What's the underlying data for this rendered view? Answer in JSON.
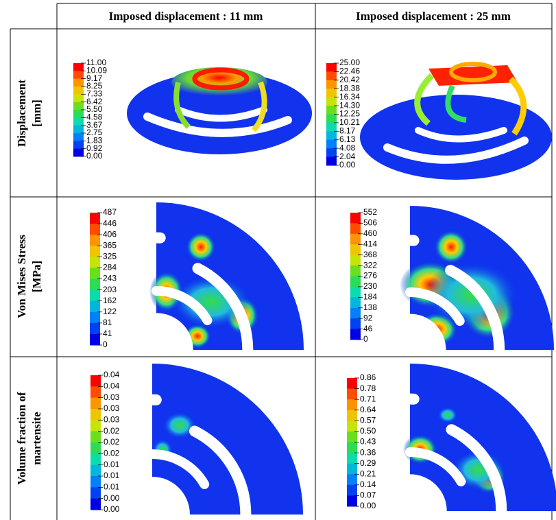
{
  "header": {
    "columns": [
      "Imposed displacement : 11 mm",
      "Imposed displacement : 25 mm"
    ]
  },
  "rows": [
    {
      "label": [
        "Displacement",
        "[mm]"
      ],
      "legends": [
        [
          "11.00",
          "10.09",
          "9.17",
          "8.25",
          "7.33",
          "6.42",
          "5.50",
          "4.58",
          "3.67",
          "2.75",
          "1.83",
          "0.92",
          "0.00"
        ],
        [
          "25.00",
          "22.46",
          "20.42",
          "18.38",
          "16.34",
          "14.30",
          "12.25",
          "10.21",
          "8.17",
          "6.13",
          "4.08",
          "2.04",
          "0.00"
        ]
      ]
    },
    {
      "label": [
        "Von Mises Stress",
        "[MPa]"
      ],
      "legends": [
        [
          "487",
          "446",
          "406",
          "365",
          "325",
          "284",
          "243",
          "203",
          "162",
          "122",
          "81",
          "41",
          "0"
        ],
        [
          "552",
          "506",
          "460",
          "414",
          "368",
          "322",
          "276",
          "230",
          "184",
          "138",
          "92",
          "46",
          "0"
        ]
      ]
    },
    {
      "label": [
        "Volume fraction of",
        "martensite"
      ],
      "legends": [
        [
          "0.04",
          "0.04",
          "0.03",
          "0.03",
          "0.03",
          "0.02",
          "0.02",
          "0.02",
          "0.01",
          "0.01",
          "0.01",
          "0.00",
          "0.00"
        ],
        [
          "0.86",
          "0.78",
          "0.71",
          "0.64",
          "0.57",
          "0.50",
          "0.43",
          "0.36",
          "0.29",
          "0.21",
          "0.14",
          "0.07",
          "0.00"
        ]
      ]
    }
  ]
}
